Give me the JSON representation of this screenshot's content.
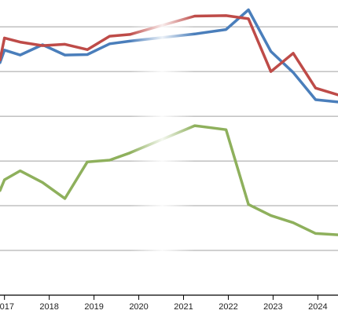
{
  "chart_data": {
    "type": "line",
    "title": "",
    "xlabel": "",
    "ylabel": "",
    "grid": true,
    "xlim": [
      2016.9,
      2024.45
    ],
    "ylim": [
      0,
      6.6
    ],
    "x_ticks": [
      2017,
      2018,
      2019,
      2020,
      2021,
      2022,
      2023,
      2024
    ],
    "x_tick_labels": [
      "2017",
      "2018",
      "2019",
      "2020",
      "2021",
      "2022",
      "2023",
      "2024"
    ],
    "y_gridlines": [
      1,
      2,
      3,
      4,
      5,
      6
    ],
    "gap_interval": [
      2019.8,
      2021.25
    ],
    "colors": {
      "blue": "#4a7ebb",
      "red": "#be4b48",
      "green": "#8eb05c",
      "grid": "#a0a0a0",
      "axis": "#000000"
    },
    "series": [
      {
        "color_key": "blue",
        "x": [
          2016.9,
          2017.0,
          2017.35,
          2017.85,
          2018.35,
          2018.85,
          2019.35,
          2019.8,
          2021.25,
          2021.95,
          2022.45,
          2022.95,
          2023.45,
          2023.95,
          2024.45
        ],
        "values": [
          5.2,
          5.48,
          5.37,
          5.6,
          5.37,
          5.38,
          5.62,
          5.68,
          5.84,
          5.94,
          6.38,
          5.45,
          4.98,
          4.37,
          4.32
        ]
      },
      {
        "color_key": "red",
        "x": [
          2016.9,
          2017.0,
          2017.35,
          2017.85,
          2018.35,
          2018.85,
          2019.35,
          2019.8,
          2021.25,
          2021.95,
          2022.45,
          2022.95,
          2023.45,
          2023.95,
          2024.45
        ],
        "values": [
          5.26,
          5.75,
          5.66,
          5.58,
          5.61,
          5.49,
          5.79,
          5.83,
          6.24,
          6.25,
          6.18,
          5.0,
          5.41,
          4.63,
          4.48
        ]
      },
      {
        "color_key": "green",
        "x": [
          2016.9,
          2017.0,
          2017.35,
          2017.85,
          2018.35,
          2018.85,
          2019.35,
          2019.8,
          2021.25,
          2021.95,
          2022.45,
          2022.95,
          2023.45,
          2023.95,
          2024.45
        ],
        "values": [
          2.34,
          2.58,
          2.78,
          2.52,
          2.16,
          2.98,
          3.02,
          3.18,
          3.79,
          3.7,
          2.03,
          1.78,
          1.62,
          1.38,
          1.35
        ]
      }
    ]
  }
}
